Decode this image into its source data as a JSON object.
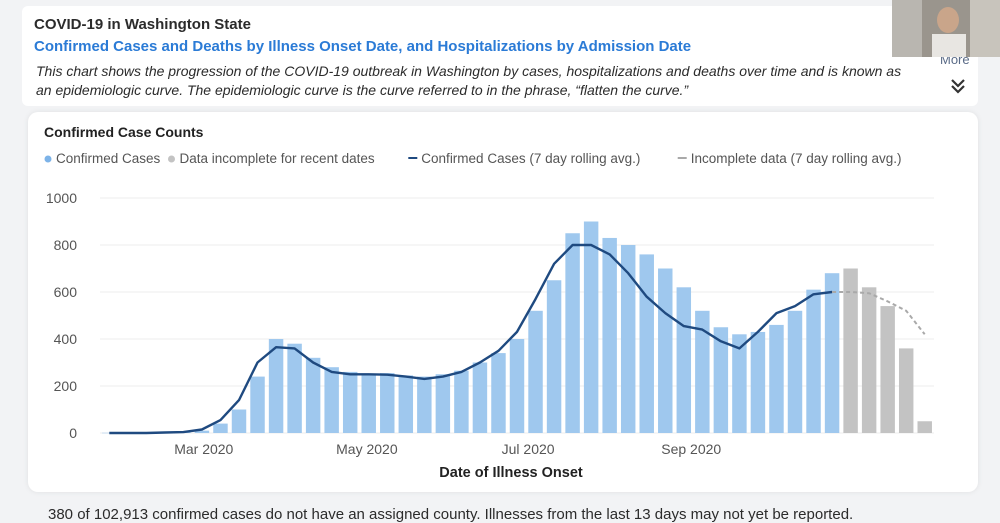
{
  "header": {
    "state_title": "COVID-19 in Washington State",
    "subtitle": "Confirmed Cases and Deaths by Illness Onset Date, and Hospitalizations by Admission Date",
    "description": "This chart shows the progression of the COVID-19 outbreak in Washington by cases, hospitalizations and deaths over time and is known as an epidemiologic curve. The epidemiologic curve is the curve referred to in the phrase, “flatten the curve.”",
    "more_label": "More",
    "expand_icon": "double-chevron-down-icon"
  },
  "footnote": "380 of 102,913 confirmed cases do not have an assigned county. Illnesses from the last 13 days may not yet be reported.",
  "colors": {
    "bar": "#9fc8ee",
    "bar_incomplete": "#c3c3c3",
    "line": "#1f4a80",
    "line_incomplete": "#a9a9a9",
    "accent": "#2b7bd6"
  },
  "chart_data": {
    "type": "bar",
    "title": "Confirmed Case Counts",
    "xlabel": "Date of Illness Onset",
    "ylabel": "",
    "ylim": [
      0,
      1000
    ],
    "yticks": [
      0,
      200,
      400,
      600,
      800,
      1000
    ],
    "x_tick_labels": [
      "Mar 2020",
      "May 2020",
      "Jul 2020",
      "Sep 2020"
    ],
    "legend_position": "top",
    "legend": [
      {
        "label": "Confirmed Cases",
        "marker": "dot",
        "color": "#7db3e8"
      },
      {
        "label": "Data incomplete for recent dates",
        "marker": "dot",
        "color": "#c3c3c3"
      },
      {
        "label": "Confirmed Cases (7 day rolling avg.)",
        "marker": "line",
        "color": "#1f4a80"
      },
      {
        "label": "Incomplete data (7 day rolling avg.)",
        "marker": "line",
        "color": "#a9a9a9"
      }
    ],
    "series": [
      {
        "name": "Confirmed Cases",
        "weekly_values": [
          1,
          1,
          1,
          2,
          3,
          10,
          40,
          100,
          240,
          400,
          380,
          320,
          280,
          260,
          250,
          255,
          245,
          240,
          250,
          265,
          300,
          340,
          400,
          520,
          650,
          850,
          900,
          830,
          800,
          760,
          700,
          620,
          520,
          450,
          420,
          430,
          460,
          520,
          610,
          680
        ],
        "rolling_avg": [
          0,
          0,
          0,
          2,
          4,
          15,
          55,
          140,
          300,
          365,
          360,
          300,
          260,
          250,
          250,
          248,
          240,
          230,
          240,
          260,
          300,
          350,
          430,
          570,
          720,
          800,
          800,
          760,
          680,
          580,
          510,
          455,
          440,
          390,
          360,
          430,
          510,
          540,
          590,
          600
        ]
      },
      {
        "name": "Data incomplete for recent dates",
        "weekly_values": [
          700,
          620,
          540,
          360,
          50
        ],
        "rolling_avg": [
          600,
          595,
          560,
          520,
          420
        ]
      }
    ]
  }
}
